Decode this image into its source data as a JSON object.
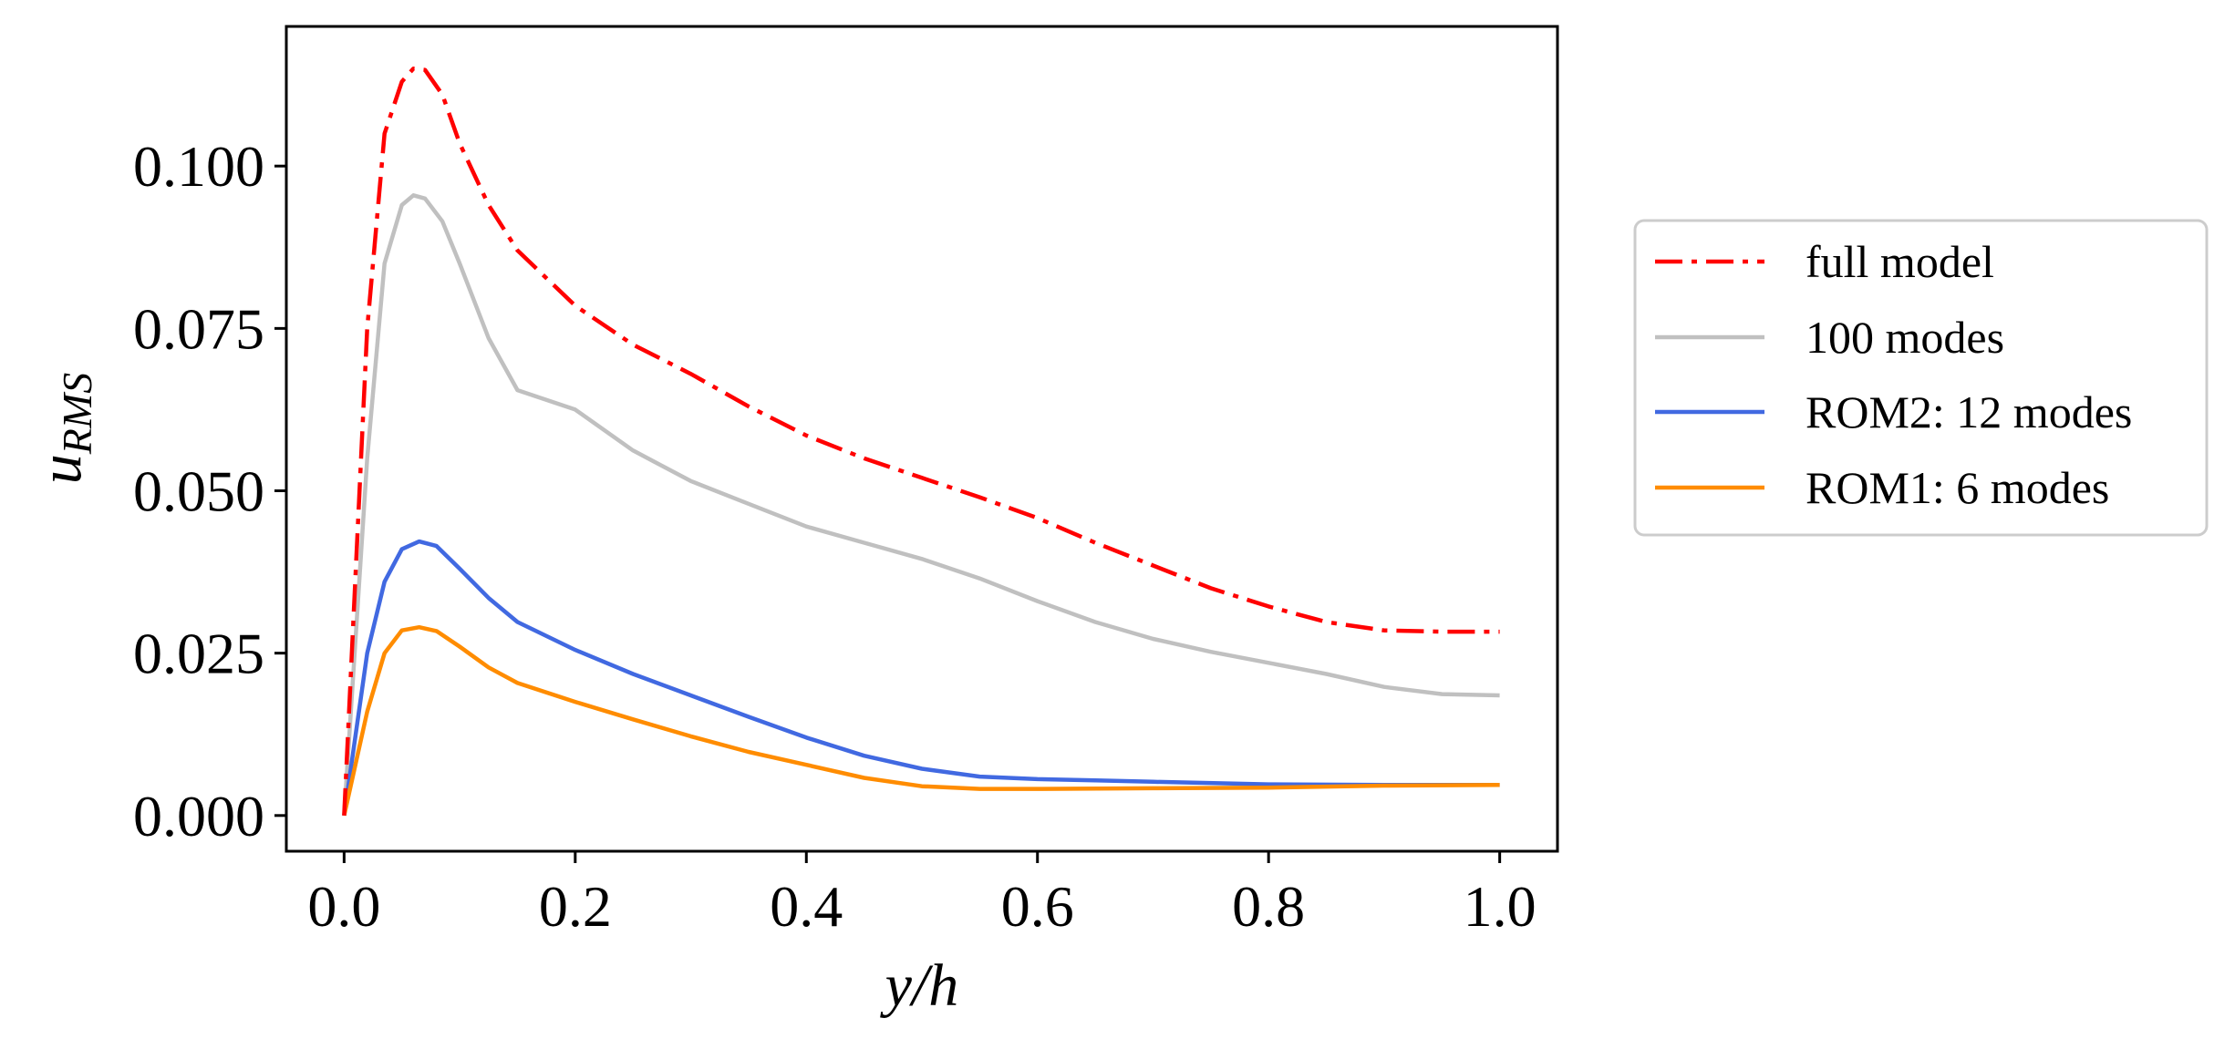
{
  "chart_data": {
    "type": "line",
    "title": "",
    "xlabel": "y/h",
    "ylabel_base": "u",
    "ylabel_sub": "RMS",
    "xlim": [
      -0.05,
      1.05
    ],
    "ylim": [
      -0.0055,
      0.1215
    ],
    "xticks": [
      0.0,
      0.2,
      0.4,
      0.6,
      0.8,
      1.0
    ],
    "xtick_labels": [
      "0.0",
      "0.2",
      "0.4",
      "0.6",
      "0.8",
      "1.0"
    ],
    "yticks": [
      0.0,
      0.025,
      0.05,
      0.075,
      0.1
    ],
    "ytick_labels": [
      "0.000",
      "0.025",
      "0.050",
      "0.075",
      "0.100"
    ],
    "legend_position": "outside-right",
    "series": [
      {
        "name": "full model",
        "color": "#ff0000",
        "style": "dashdot",
        "x": [
          0,
          0.02,
          0.035,
          0.05,
          0.06,
          0.07,
          0.085,
          0.1,
          0.125,
          0.15,
          0.2,
          0.25,
          0.3,
          0.35,
          0.4,
          0.45,
          0.5,
          0.55,
          0.6,
          0.65,
          0.7,
          0.75,
          0.8,
          0.85,
          0.9,
          0.95,
          1.0
        ],
        "values": [
          0.0,
          0.075,
          0.105,
          0.113,
          0.115,
          0.1148,
          0.111,
          0.1035,
          0.094,
          0.087,
          0.0785,
          0.0725,
          0.068,
          0.063,
          0.0585,
          0.055,
          0.052,
          0.049,
          0.0458,
          0.042,
          0.0385,
          0.035,
          0.0322,
          0.0298,
          0.0285,
          0.0283,
          0.0283
        ]
      },
      {
        "name": "100 modes",
        "color": "#c0c0c0",
        "style": "solid",
        "x": [
          0,
          0.02,
          0.035,
          0.05,
          0.06,
          0.07,
          0.085,
          0.1,
          0.125,
          0.15,
          0.2,
          0.25,
          0.3,
          0.35,
          0.4,
          0.45,
          0.5,
          0.55,
          0.6,
          0.65,
          0.7,
          0.75,
          0.8,
          0.85,
          0.9,
          0.95,
          1.0
        ],
        "values": [
          0.0,
          0.055,
          0.085,
          0.094,
          0.0955,
          0.095,
          0.0915,
          0.085,
          0.0735,
          0.0655,
          0.0625,
          0.0562,
          0.0515,
          0.048,
          0.0445,
          0.042,
          0.0395,
          0.0365,
          0.033,
          0.0298,
          0.0272,
          0.0252,
          0.0235,
          0.0218,
          0.0198,
          0.0187,
          0.0185
        ]
      },
      {
        "name": "ROM2: 12 modes",
        "color": "#4169e1",
        "style": "solid",
        "x": [
          0,
          0.02,
          0.035,
          0.05,
          0.065,
          0.08,
          0.1,
          0.125,
          0.15,
          0.2,
          0.25,
          0.3,
          0.35,
          0.4,
          0.45,
          0.5,
          0.55,
          0.6,
          0.65,
          0.7,
          0.8,
          0.9,
          1.0
        ],
        "values": [
          0.0,
          0.025,
          0.036,
          0.041,
          0.0422,
          0.0415,
          0.038,
          0.0335,
          0.0298,
          0.0255,
          0.0218,
          0.0185,
          0.0152,
          0.012,
          0.0092,
          0.0072,
          0.006,
          0.0056,
          0.0054,
          0.0052,
          0.0048,
          0.0047,
          0.0047
        ]
      },
      {
        "name": "ROM1: 6 modes",
        "color": "#ff8c00",
        "style": "solid",
        "x": [
          0,
          0.02,
          0.035,
          0.05,
          0.065,
          0.08,
          0.1,
          0.125,
          0.15,
          0.2,
          0.25,
          0.3,
          0.35,
          0.4,
          0.45,
          0.5,
          0.55,
          0.6,
          0.7,
          0.8,
          0.9,
          1.0
        ],
        "values": [
          0.0,
          0.016,
          0.025,
          0.0285,
          0.029,
          0.0284,
          0.026,
          0.0228,
          0.0204,
          0.0175,
          0.0148,
          0.0122,
          0.0098,
          0.0078,
          0.0058,
          0.0045,
          0.0041,
          0.0041,
          0.0042,
          0.0043,
          0.0046,
          0.0047
        ]
      }
    ]
  }
}
